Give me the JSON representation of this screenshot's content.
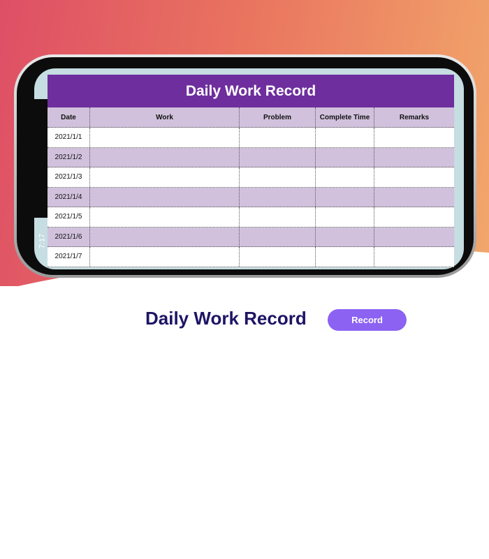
{
  "status_bar": {
    "time": "7:17"
  },
  "sheet": {
    "title": "Daily Work Record",
    "columns": [
      "Date",
      "Work",
      "Problem",
      "Complete Time",
      "Remarks"
    ],
    "rows": [
      [
        "2021/1/1",
        "",
        "",
        "",
        ""
      ],
      [
        "2021/1/2",
        "",
        "",
        "",
        ""
      ],
      [
        "2021/1/3",
        "",
        "",
        "",
        ""
      ],
      [
        "2021/1/4",
        "",
        "",
        "",
        ""
      ],
      [
        "2021/1/5",
        "",
        "",
        "",
        ""
      ],
      [
        "2021/1/6",
        "",
        "",
        "",
        ""
      ],
      [
        "2021/1/7",
        "",
        "",
        "",
        ""
      ]
    ]
  },
  "caption": "Daily Work Record",
  "record_button": "Record",
  "colors": {
    "header": "#6e2e9e",
    "row_alt": "#d1c1dc",
    "button": "#8c62f2",
    "caption": "#1e1466"
  }
}
